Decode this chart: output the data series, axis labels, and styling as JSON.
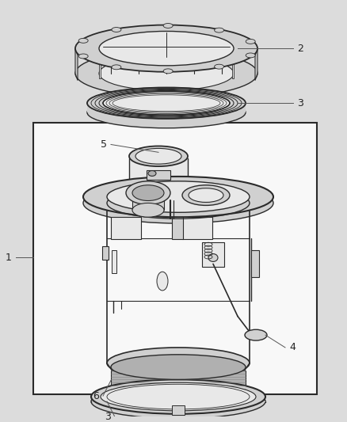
{
  "bg_color": "#dcdcdc",
  "box_fill": "#ffffff",
  "box_edge": "#333333",
  "lc": "#2a2a2a",
  "lc_light": "#666666",
  "fill_white": "#f8f8f8",
  "fill_light": "#e8e8e8",
  "fill_mid": "#d0d0d0",
  "fill_dark": "#b0b0b0",
  "fill_darkest": "#888888",
  "label_fs": 9,
  "leader_lw": 0.7,
  "leader_color": "#555555"
}
